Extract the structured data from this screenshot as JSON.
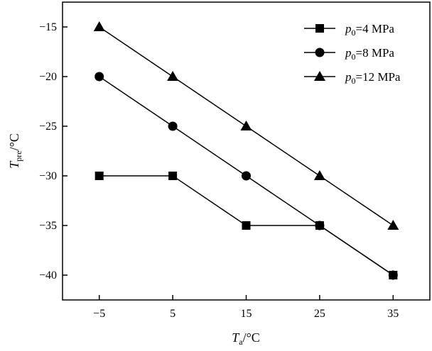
{
  "chart_data": {
    "type": "line",
    "x": [
      -5,
      5,
      15,
      25,
      35
    ],
    "xticks": [
      "−5",
      "5",
      "15",
      "25",
      "35"
    ],
    "yticks": [
      "−15",
      "−20",
      "−25",
      "−30",
      "−35",
      "−40"
    ],
    "yticks_values": [
      -15,
      -20,
      -25,
      -30,
      -35,
      -40
    ],
    "xlim": [
      -10,
      40
    ],
    "ylim": [
      -42.5,
      -12.5
    ],
    "xlabel": {
      "main": "T",
      "sub": "a",
      "unit": "/°C"
    },
    "ylabel": {
      "main": "T",
      "sub": "pre",
      "unit": "/°C"
    },
    "grid": false,
    "legend_position": "top-right",
    "series": [
      {
        "legend_var": "p",
        "legend_sub": "0",
        "legend_value": "=4 MPa",
        "marker": "square",
        "values": [
          -30,
          -30,
          -35,
          -35,
          -40
        ]
      },
      {
        "legend_var": "p",
        "legend_sub": "0",
        "legend_value": "=8 MPa",
        "marker": "circle",
        "values": [
          -20,
          -25,
          -30,
          -35,
          -40
        ]
      },
      {
        "legend_var": "p",
        "legend_sub": "0",
        "legend_value": "=12 MPa",
        "marker": "triangle",
        "values": [
          -15,
          -20,
          -25,
          -30,
          -35
        ]
      }
    ]
  }
}
